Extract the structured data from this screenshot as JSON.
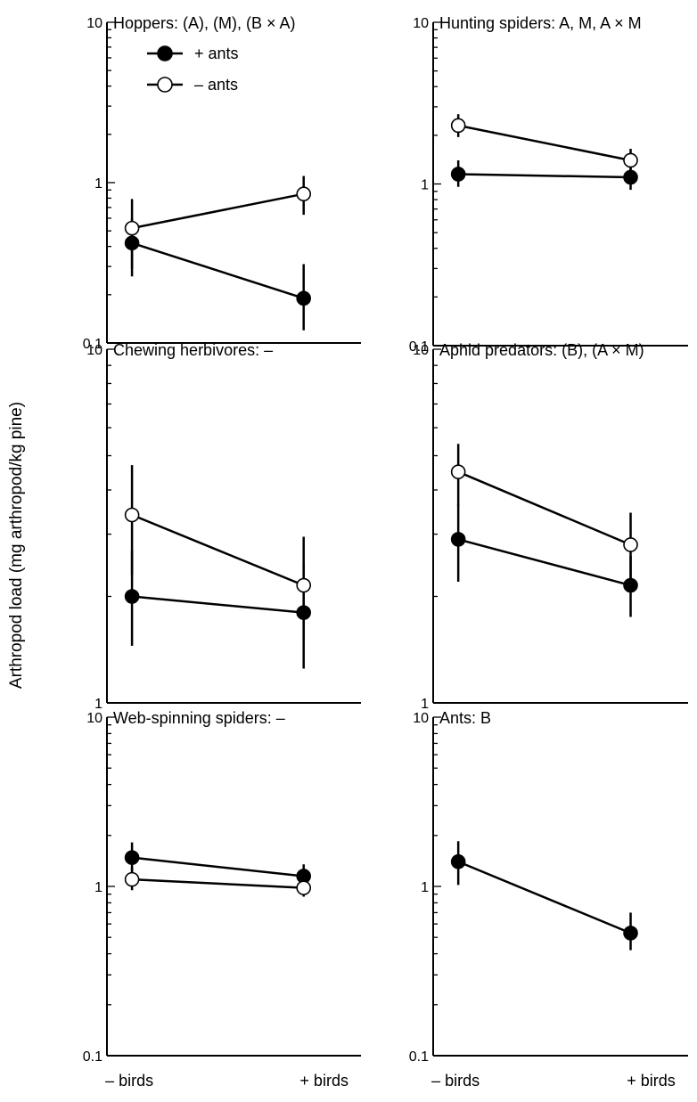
{
  "ylabel": "Arthropod load (mg arthropod/kg pine)",
  "legend": [
    {
      "label": "+ ants",
      "filled": true
    },
    {
      "label": "– ants",
      "filled": false
    }
  ],
  "x_categories": [
    "– birds",
    "+ birds"
  ],
  "chart_data": [
    {
      "type": "line",
      "title": "Hoppers: (A), (M), (B × A)",
      "yscale": "log",
      "ylim": [
        0.1,
        10
      ],
      "yticks": [
        "10",
        "1",
        "0.1"
      ],
      "categories": [
        "– birds",
        "+ birds"
      ],
      "series": [
        {
          "name": "+ ants",
          "values": [
            0.42,
            0.19
          ],
          "err_low": [
            0.26,
            0.12
          ],
          "err_high": [
            0.6,
            0.31
          ]
        },
        {
          "name": "– ants",
          "values": [
            0.52,
            0.85
          ],
          "err_low": [
            0.29,
            0.63
          ],
          "err_high": [
            0.79,
            1.1
          ]
        }
      ]
    },
    {
      "type": "line",
      "title": "Hunting spiders: A, M, A × M",
      "yscale": "log",
      "ylim": [
        0.1,
        10
      ],
      "yticks": [
        "10",
        "1",
        "0.1"
      ],
      "categories": [
        "– birds",
        "+ birds"
      ],
      "series": [
        {
          "name": "+ ants",
          "values": [
            1.15,
            1.1
          ],
          "err_low": [
            0.96,
            0.92
          ],
          "err_high": [
            1.4,
            1.3
          ]
        },
        {
          "name": "– ants",
          "values": [
            2.3,
            1.4
          ],
          "err_low": [
            1.95,
            1.2
          ],
          "err_high": [
            2.7,
            1.65
          ]
        }
      ]
    },
    {
      "type": "line",
      "title": "Chewing herbivores: –",
      "yscale": "log",
      "ylim": [
        1,
        10
      ],
      "yticks": [
        "10",
        "1"
      ],
      "categories": [
        "– birds",
        "+ birds"
      ],
      "series": [
        {
          "name": "+ ants",
          "values": [
            2.0,
            1.8
          ],
          "err_low": [
            1.45,
            1.25
          ],
          "err_high": [
            2.7,
            2.5
          ]
        },
        {
          "name": "– ants",
          "values": [
            3.4,
            2.15
          ],
          "err_low": [
            2.3,
            1.5
          ],
          "err_high": [
            4.7,
            2.95
          ]
        }
      ]
    },
    {
      "type": "line",
      "title": "Aphid predators: (B), (A × M)",
      "yscale": "log",
      "ylim": [
        1,
        10
      ],
      "yticks": [
        "10",
        "1"
      ],
      "categories": [
        "– birds",
        "+ birds"
      ],
      "series": [
        {
          "name": "+ ants",
          "values": [
            2.9,
            2.15
          ],
          "err_low": [
            2.2,
            1.75
          ],
          "err_high": [
            3.65,
            2.6
          ]
        },
        {
          "name": "– ants",
          "values": [
            4.5,
            2.8
          ],
          "err_low": [
            3.6,
            2.2
          ],
          "err_high": [
            5.4,
            3.45
          ]
        }
      ]
    },
    {
      "type": "line",
      "title": "Web-spinning spiders: –",
      "yscale": "log",
      "ylim": [
        0.1,
        10
      ],
      "yticks": [
        "10",
        "1",
        "0.1"
      ],
      "categories": [
        "– birds",
        "+ birds"
      ],
      "series": [
        {
          "name": "+ ants",
          "values": [
            1.48,
            1.15
          ],
          "err_low": [
            1.22,
            0.98
          ],
          "err_high": [
            1.82,
            1.35
          ]
        },
        {
          "name": "– ants",
          "values": [
            1.1,
            0.98
          ],
          "err_low": [
            0.95,
            0.87
          ],
          "err_high": [
            1.3,
            1.12
          ]
        }
      ]
    },
    {
      "type": "line",
      "title": "Ants: B",
      "yscale": "log",
      "ylim": [
        0.1,
        10
      ],
      "yticks": [
        "10",
        "1",
        "0.1"
      ],
      "categories": [
        "– birds",
        "+ birds"
      ],
      "series": [
        {
          "name": "+ ants",
          "values": [
            1.4,
            0.53
          ],
          "err_low": [
            1.02,
            0.42
          ],
          "err_high": [
            1.85,
            0.7
          ]
        }
      ]
    }
  ]
}
